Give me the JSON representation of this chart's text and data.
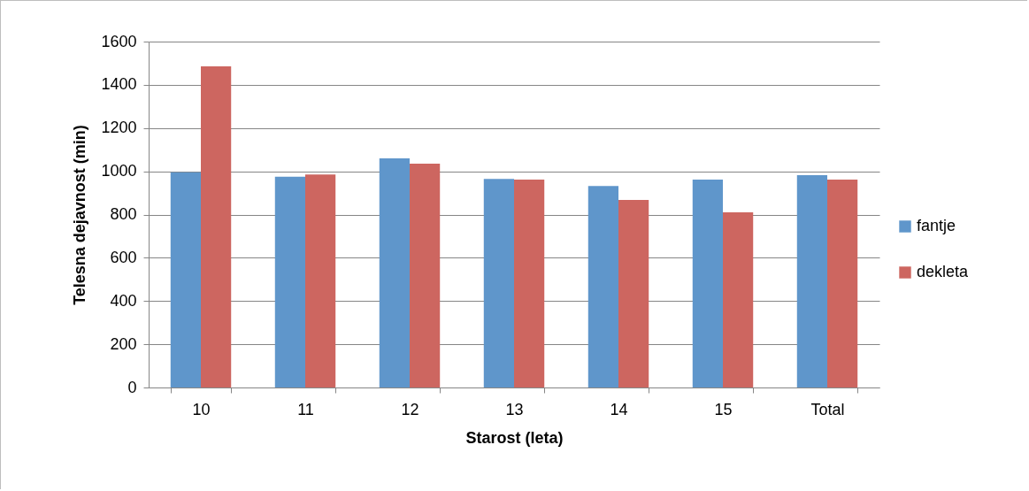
{
  "chart_data": {
    "type": "bar",
    "xlabel": "Starost (leta)",
    "ylabel": "Telesna dejavnost (min)",
    "categories": [
      "10",
      "11",
      "12",
      "13",
      "14",
      "15",
      "Total"
    ],
    "series": [
      {
        "name": "fantje",
        "color": "#5f96cb",
        "values": [
          995,
          975,
          1060,
          965,
          932,
          962,
          982
        ]
      },
      {
        "name": "dekleta",
        "color": "#cd6660",
        "values": [
          1485,
          985,
          1035,
          962,
          868,
          810,
          962
        ]
      }
    ],
    "ylim": [
      0,
      1600
    ],
    "yticks": [
      0,
      200,
      400,
      600,
      800,
      1000,
      1200,
      1400,
      1600
    ],
    "grid": "y",
    "legend": "right"
  }
}
